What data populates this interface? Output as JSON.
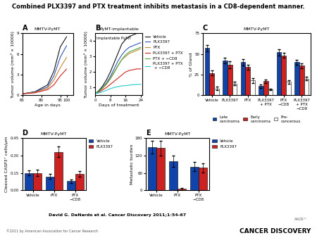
{
  "title": "Combined PLX3397 and PTX treatment inhibits metastasis in a CD8-dependent manner.",
  "annotations": [
    "David G. DeNardo et al. Cancer Discovery 2011;1:54-67",
    "©2011 by American Association for Cancer Research",
    "AACR™",
    "CANCER DISCOVERY"
  ],
  "chart_data": [
    {
      "type": "line",
      "title": "A",
      "subtitle": "MMTV-PyMT",
      "xlabel": "Age in days",
      "ylabel": "Tumor volume (mm³ × 10000)",
      "x": [
        65,
        75,
        85,
        90,
        95,
        100
      ],
      "xlim": [
        65,
        105
      ],
      "ylim": [
        0,
        9.0
      ],
      "xticks": [
        65,
        80,
        95,
        100
      ],
      "yticks": [
        0,
        3,
        6,
        9
      ],
      "series": [
        {
          "color": "#111111",
          "values": [
            0.2,
            0.5,
            1.5,
            3.5,
            7.0,
            8.5
          ]
        },
        {
          "color": "#3355bb",
          "values": [
            0.2,
            0.45,
            1.2,
            2.8,
            5.5,
            7.2
          ]
        },
        {
          "color": "#cc8833",
          "values": [
            0.2,
            0.4,
            1.0,
            2.2,
            4.0,
            5.5
          ]
        },
        {
          "color": "#cc2222",
          "values": [
            0.2,
            0.35,
            0.8,
            1.5,
            2.8,
            3.8
          ]
        }
      ]
    },
    {
      "type": "line",
      "title": "B",
      "subtitle": "PyMT-implantable",
      "annotations": [
        "Implantable PyMT"
      ],
      "xlabel": "Days of treatment",
      "ylabel": "Tumor volume (mm³ × 10000)",
      "x": [
        0,
        2,
        4,
        6,
        8,
        10,
        12,
        14,
        16,
        18,
        20,
        22,
        24
      ],
      "xlim": [
        0,
        25
      ],
      "ylim": [
        0.5,
        4.5
      ],
      "xticks": [
        0,
        8,
        16,
        24
      ],
      "yticks": [
        1,
        2,
        3,
        4
      ],
      "legend": "right",
      "series": [
        {
          "name": "Vehicle",
          "color": "#111111",
          "values": [
            0.6,
            0.8,
            1.1,
            1.5,
            2.0,
            2.6,
            3.2,
            3.8,
            4.1,
            4.3,
            4.4,
            4.5,
            4.5
          ]
        },
        {
          "name": "PLX3397",
          "color": "#3355bb",
          "values": [
            0.6,
            0.75,
            1.0,
            1.3,
            1.7,
            2.2,
            2.7,
            3.1,
            3.4,
            3.6,
            3.7,
            3.8,
            3.9
          ]
        },
        {
          "name": "PTX",
          "color": "#cc8833",
          "values": [
            0.6,
            0.72,
            0.95,
            1.2,
            1.55,
            1.95,
            2.4,
            2.8,
            3.0,
            3.2,
            3.3,
            3.4,
            3.5
          ]
        },
        {
          "name": "PLX3397 + PTX",
          "color": "#cc2222",
          "values": [
            0.6,
            0.7,
            0.85,
            1.0,
            1.2,
            1.4,
            1.6,
            1.8,
            2.0,
            2.1,
            2.15,
            2.2,
            2.2
          ]
        },
        {
          "name": "PTX + −CD8",
          "color": "#44aa44",
          "values": [
            0.6,
            0.75,
            0.98,
            1.25,
            1.6,
            2.0,
            2.4,
            2.8,
            3.1,
            3.3,
            3.4,
            3.5,
            3.6
          ]
        },
        {
          "name": "PLX3397 + PTX\n + −CD8",
          "color": "#22cccc",
          "values": [
            0.6,
            0.65,
            0.72,
            0.82,
            0.92,
            1.0,
            1.05,
            1.1,
            1.12,
            1.15,
            1.18,
            1.2,
            1.2
          ]
        }
      ]
    },
    {
      "type": "bar",
      "title": "C",
      "subtitle": "MMTV-PyMT",
      "ylabel": "% of Gland",
      "categories": [
        "Vehicle",
        "PLX3397",
        "PTX",
        "PLX3397\n+ PTX",
        "PTX\n−CD8",
        "PLX3397\n+ PTX\n−CD8"
      ],
      "ylim": [
        0,
        75
      ],
      "yticks": [
        0,
        25,
        50,
        75
      ],
      "legend": "below",
      "series": [
        {
          "name": "Late\ncarcinoma",
          "color": "#1144aa",
          "values": [
            57,
            42,
            40,
            11,
            52,
            40
          ],
          "errors": [
            4,
            3,
            4,
            2,
            4,
            3
          ]
        },
        {
          "name": "Early\ncarcinoma",
          "color": "#cc2222",
          "values": [
            27,
            37,
            34,
            17,
            48,
            36
          ],
          "errors": [
            3,
            4,
            3,
            2,
            3,
            3
          ]
        },
        {
          "name": "Pre-\ncancerous",
          "color": "#ffffff",
          "values": [
            8,
            14,
            18,
            7,
            16,
            20
          ],
          "errors": [
            2,
            2,
            3,
            1,
            2,
            2
          ]
        }
      ]
    },
    {
      "type": "bar",
      "title": "D",
      "subtitle": "MMTV-PyMT",
      "ylabel": "Cleaved CASP3⁺ cells/μm",
      "categories": [
        "Vehicle",
        "PTX",
        "PTX\n−CD8"
      ],
      "ylim": [
        0,
        0.45
      ],
      "yticks": [
        {
          "value": 0,
          "label": "0.00"
        },
        0.15,
        {
          "value": 0.3,
          "label": "0.30"
        },
        0.45
      ],
      "legend": "right",
      "series": [
        {
          "name": "Vehicle",
          "color": "#1144aa",
          "values": [
            0.15,
            0.12,
            0.08
          ],
          "errors": [
            0.02,
            0.02,
            0.015
          ]
        },
        {
          "name": "PLX3397",
          "color": "#cc2222",
          "values": [
            0.15,
            0.33,
            0.14
          ],
          "errors": [
            0.025,
            0.045,
            0.025
          ]
        }
      ]
    },
    {
      "type": "bar",
      "title": "E",
      "subtitle": "MMTV-PyMT",
      "ylabel": "Metastatic burden",
      "categories": [
        "Vehicle",
        "PTX",
        "PTX\n−CD8"
      ],
      "ylim": [
        0,
        180
      ],
      "yticks": [
        0,
        60,
        120,
        180
      ],
      "legend": "right",
      "series": [
        {
          "name": "Vehicle",
          "color": "#1144aa",
          "values": [
            148,
            100,
            82
          ],
          "errors": [
            22,
            20,
            16
          ]
        },
        {
          "name": "PLX3397",
          "color": "#cc2222",
          "values": [
            145,
            5,
            78
          ],
          "errors": [
            25,
            4,
            16
          ]
        }
      ]
    }
  ]
}
